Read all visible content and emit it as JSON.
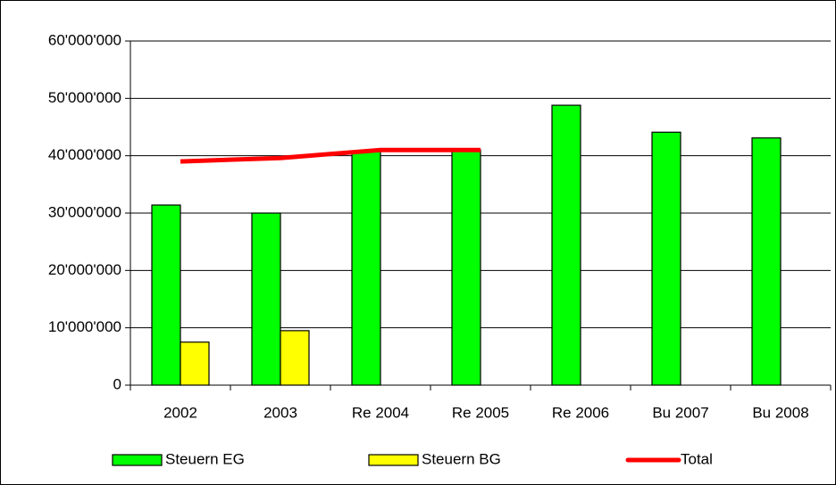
{
  "chart_data": {
    "type": "bar",
    "categories": [
      "2002",
      "2003",
      "Re 2004",
      "Re 2005",
      "Re 2006",
      "Bu 2007",
      "Bu 2008"
    ],
    "series": [
      {
        "name": "Steuern EG",
        "color": "#00ff00",
        "values": [
          31400000,
          30000000,
          40800000,
          41000000,
          48800000,
          44100000,
          43100000
        ]
      },
      {
        "name": "Steuern BG",
        "color": "#ffff00",
        "values": [
          7500000,
          9500000,
          null,
          null,
          null,
          null,
          null
        ]
      },
      {
        "name": "Total",
        "type": "line",
        "color": "#ff0000",
        "values": [
          39000000,
          39600000,
          41000000,
          41000000,
          null,
          null,
          null
        ]
      }
    ],
    "ylim": [
      0,
      60000000
    ],
    "yticks": [
      0,
      {
        "value": 10000000,
        "label": "10'000'000"
      },
      {
        "value": 20000000,
        "label": "20'000'000"
      },
      {
        "value": 30000000,
        "label": "30'000'000"
      },
      {
        "value": 40000000,
        "label": "40'000'000"
      },
      {
        "value": 50000000,
        "label": "50'000'000"
      },
      {
        "value": 60000000,
        "label": "60'000'000"
      }
    ],
    "grid": true,
    "legend": "bottom"
  }
}
